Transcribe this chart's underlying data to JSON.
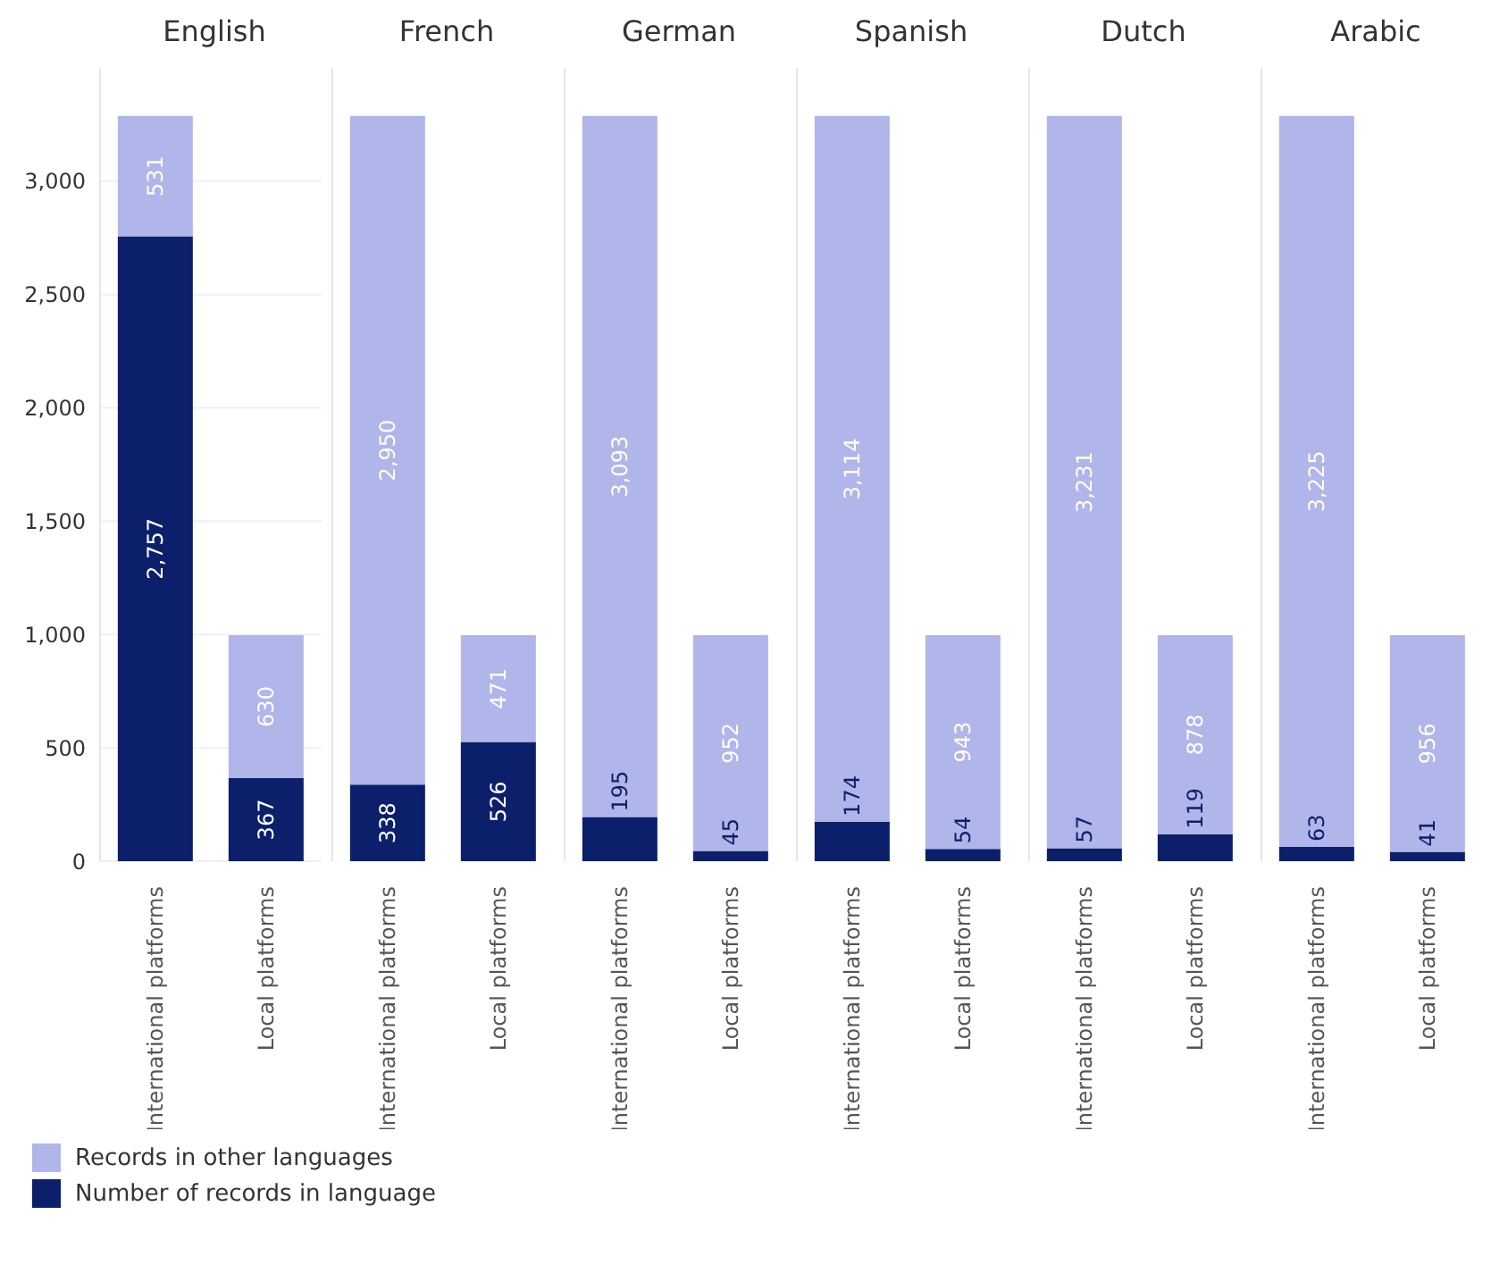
{
  "chart_data": [
    {
      "type": "bar",
      "title": "English",
      "categories": [
        "International platforms",
        "Local platforms"
      ],
      "stacked": true,
      "ylim": [
        0,
        3500
      ],
      "yticks": [
        0,
        500,
        {
          "value": 1000,
          "label": "1,000"
        },
        {
          "value": 1500,
          "label": "1,500"
        },
        {
          "value": 2000,
          "label": "2,000"
        },
        {
          "value": 2500,
          "label": "2,500"
        },
        {
          "value": 3000,
          "label": "3,000"
        }
      ],
      "grid": "y",
      "legend": "bottom",
      "series": [
        {
          "name": "Number of records in language",
          "color": "#0b1f6b",
          "values": [
            2757,
            367
          ],
          "value_labels": [
            "2,757",
            "367"
          ]
        },
        {
          "name": "Records in other languages",
          "color": "#b0b5ea",
          "values": [
            531,
            630
          ],
          "value_labels": [
            "531",
            "630"
          ]
        }
      ]
    },
    {
      "type": "bar",
      "title": "French",
      "categories": [
        "International platforms",
        "Local platforms"
      ],
      "stacked": true,
      "ylim": [
        0,
        3500
      ],
      "yticks": [
        0,
        500,
        1000,
        1500,
        2000,
        2500,
        3000
      ],
      "grid": "y",
      "tick_labels": "x",
      "series": [
        {
          "color": "#0b1f6b",
          "values": [
            338,
            526
          ],
          "value_labels": [
            "338",
            "526"
          ]
        },
        {
          "color": "#b0b5ea",
          "values": [
            2950,
            471
          ],
          "value_labels": [
            "2,950",
            "471"
          ]
        }
      ]
    },
    {
      "type": "bar",
      "title": "German",
      "categories": [
        "International platforms",
        "Local platforms"
      ],
      "stacked": true,
      "ylim": [
        0,
        3500
      ],
      "yticks": [
        0,
        500,
        1000,
        1500,
        2000,
        2500,
        3000
      ],
      "grid": "y",
      "tick_labels": "x",
      "series": [
        {
          "color": "#0b1f6b",
          "values": [
            195,
            45
          ],
          "value_labels": [
            "195",
            "45"
          ]
        },
        {
          "color": "#b0b5ea",
          "values": [
            3093,
            952
          ],
          "value_labels": [
            "3,093",
            "952"
          ]
        }
      ]
    },
    {
      "type": "bar",
      "title": "Spanish",
      "categories": [
        "International platforms",
        "Local platforms"
      ],
      "stacked": true,
      "ylim": [
        0,
        3500
      ],
      "yticks": [
        0,
        500,
        1000,
        1500,
        2000,
        2500,
        3000
      ],
      "grid": "y",
      "tick_labels": "x",
      "series": [
        {
          "color": "#0b1f6b",
          "values": [
            174,
            54
          ],
          "value_labels": [
            "174",
            "54"
          ]
        },
        {
          "color": "#b0b5ea",
          "values": [
            3114,
            943
          ],
          "value_labels": [
            "3,114",
            "943"
          ]
        }
      ]
    },
    {
      "type": "bar",
      "title": "Dutch",
      "categories": [
        "International platforms",
        "Local platforms"
      ],
      "stacked": true,
      "ylim": [
        0,
        3500
      ],
      "yticks": [
        0,
        500,
        1000,
        1500,
        2000,
        2500,
        3000
      ],
      "grid": "y",
      "tick_labels": "x",
      "series": [
        {
          "color": "#0b1f6b",
          "values": [
            57,
            119
          ],
          "value_labels": [
            "57",
            "119"
          ]
        },
        {
          "color": "#b0b5ea",
          "values": [
            3231,
            878
          ],
          "value_labels": [
            "3,231",
            "878"
          ]
        }
      ]
    },
    {
      "type": "bar",
      "title": "Arabic",
      "categories": [
        "International platforms",
        "Local platforms"
      ],
      "stacked": true,
      "ylim": [
        0,
        3500
      ],
      "yticks": [
        0,
        500,
        1000,
        1500,
        2000,
        2500,
        3000
      ],
      "grid": "y",
      "tick_labels": "x",
      "series": [
        {
          "color": "#0b1f6b",
          "values": [
            63,
            41
          ],
          "value_labels": [
            "63",
            "41"
          ]
        },
        {
          "color": "#b0b5ea",
          "values": [
            3225,
            956
          ],
          "value_labels": [
            "3,225",
            "956"
          ]
        }
      ]
    }
  ]
}
